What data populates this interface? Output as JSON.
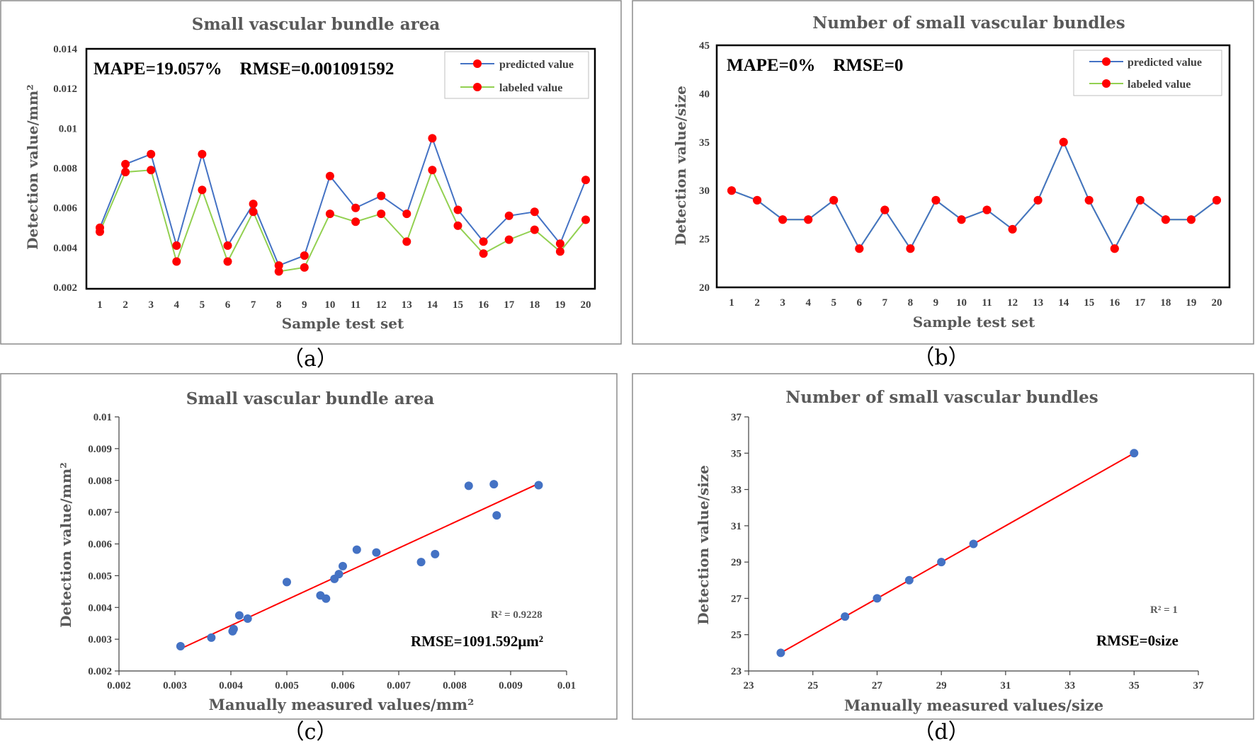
{
  "colors": {
    "predicted": "#4472C4",
    "labeled": "#92D050",
    "marker": "#FF0000",
    "scatter": "#4472C4",
    "fit": "#FF0000"
  },
  "chart_data": [
    {
      "id": "a",
      "type": "line",
      "caption": "（a）",
      "title": "Small vascular bundle area",
      "xlabel": "Sample test set",
      "ylabel": "Detection value/mm²",
      "metrics": "MAPE=19.057%    RMSE=0.001091592",
      "categories": [
        "1",
        "2",
        "3",
        "4",
        "5",
        "6",
        "7",
        "8",
        "9",
        "10",
        "11",
        "12",
        "13",
        "14",
        "15",
        "16",
        "17",
        "18",
        "19",
        "20"
      ],
      "ylim": [
        0.002,
        0.014
      ],
      "yticks": [
        0.002,
        0.004,
        0.006,
        0.008,
        0.01,
        0.012,
        0.014
      ],
      "ytick_labels": [
        "0.002",
        "0.004",
        "0.006",
        "0.008",
        "0.01",
        "0.012",
        "0.014"
      ],
      "legend": "top-right",
      "series": [
        {
          "name": "predicted value",
          "values": [
            0.005,
            0.0082,
            0.0087,
            0.0041,
            0.0087,
            0.0041,
            0.0062,
            0.0031,
            0.0036,
            0.0076,
            0.006,
            0.0066,
            0.0057,
            0.0095,
            0.0059,
            0.0043,
            0.0056,
            0.0058,
            0.0042,
            0.0074
          ]
        },
        {
          "name": "labeled value",
          "values": [
            0.0048,
            0.0078,
            0.0079,
            0.0033,
            0.0069,
            0.0033,
            0.0058,
            0.0028,
            0.003,
            0.0057,
            0.0053,
            0.0057,
            0.0043,
            0.0079,
            0.0051,
            0.0037,
            0.0044,
            0.0049,
            0.0038,
            0.0054
          ]
        }
      ]
    },
    {
      "id": "b",
      "type": "line",
      "caption": "（b）",
      "title": "Number of small vascular bundles",
      "xlabel": "Sample test set",
      "ylabel": "Detection value/size",
      "metrics": "MAPE=0%    RMSE=0",
      "categories": [
        "1",
        "2",
        "3",
        "4",
        "5",
        "6",
        "7",
        "8",
        "9",
        "10",
        "11",
        "12",
        "13",
        "14",
        "15",
        "16",
        "17",
        "18",
        "19",
        "20"
      ],
      "ylim": [
        20,
        45
      ],
      "yticks": [
        20,
        25,
        30,
        35,
        40,
        45
      ],
      "ytick_labels": [
        "20",
        "25",
        "30",
        "35",
        "40",
        "45"
      ],
      "legend": "top-right",
      "series": [
        {
          "name": "predicted value",
          "values": [
            30,
            29,
            27,
            27,
            29,
            24,
            28,
            24,
            29,
            27,
            28,
            26,
            29,
            35,
            29,
            24,
            29,
            27,
            27,
            29
          ]
        },
        {
          "name": "labeled value",
          "values": [
            30,
            29,
            27,
            27,
            29,
            24,
            28,
            24,
            29,
            27,
            28,
            26,
            29,
            35,
            29,
            24,
            29,
            27,
            27,
            29
          ]
        }
      ]
    },
    {
      "id": "c",
      "type": "scatter",
      "caption": "（c）",
      "title": "Small vascular bundle area",
      "xlabel": "Manually measured values/mm²",
      "ylabel": "Detection value/mm²",
      "r2": "R² = 0.9228",
      "metric": "RMSE=1091.592μm²",
      "xlim": [
        0.002,
        0.01
      ],
      "ylim": [
        0.002,
        0.01
      ],
      "xticks": [
        0.002,
        0.003,
        0.004,
        0.005,
        0.006,
        0.007,
        0.008,
        0.009,
        0.01
      ],
      "xtick_labels": [
        "0.002",
        "0.003",
        "0.004",
        "0.005",
        "0.006",
        "0.007",
        "0.008",
        "0.009",
        "0.01"
      ],
      "yticks": [
        0.002,
        0.003,
        0.004,
        0.005,
        0.006,
        0.007,
        0.008,
        0.009,
        0.01
      ],
      "ytick_labels": [
        "0.002",
        "0.003",
        "0.004",
        "0.005",
        "0.006",
        "0.007",
        "0.008",
        "0.009",
        "0.01"
      ],
      "points": [
        [
          0.0031,
          0.00278
        ],
        [
          0.00365,
          0.00305
        ],
        [
          0.00403,
          0.00325
        ],
        [
          0.00405,
          0.00332
        ],
        [
          0.00415,
          0.00375
        ],
        [
          0.0043,
          0.00365
        ],
        [
          0.005,
          0.0048
        ],
        [
          0.0056,
          0.00438
        ],
        [
          0.0057,
          0.00428
        ],
        [
          0.00585,
          0.0049
        ],
        [
          0.00593,
          0.00505
        ],
        [
          0.006,
          0.0053
        ],
        [
          0.00625,
          0.00582
        ],
        [
          0.0066,
          0.00573
        ],
        [
          0.0074,
          0.00543
        ],
        [
          0.00765,
          0.00568
        ],
        [
          0.00825,
          0.00783
        ],
        [
          0.0087,
          0.00788
        ],
        [
          0.00875,
          0.0069
        ],
        [
          0.0095,
          0.00785
        ]
      ],
      "fit": [
        [
          0.0031,
          0.0027
        ],
        [
          0.0095,
          0.0079
        ]
      ]
    },
    {
      "id": "d",
      "type": "scatter",
      "caption": "（d）",
      "title": "Number of small vascular bundles",
      "xlabel": "Manually measured values/size",
      "ylabel": "Detection value/size",
      "r2": "R² = 1",
      "metric": "RMSE=0size",
      "xlim": [
        23,
        37
      ],
      "ylim": [
        23,
        37
      ],
      "xticks": [
        23,
        25,
        27,
        29,
        31,
        33,
        35,
        37
      ],
      "xtick_labels": [
        "23",
        "25",
        "27",
        "29",
        "31",
        "33",
        "35",
        "37"
      ],
      "yticks": [
        23,
        25,
        27,
        29,
        31,
        33,
        35,
        37
      ],
      "ytick_labels": [
        "23",
        "25",
        "27",
        "29",
        "31",
        "33",
        "35",
        "37"
      ],
      "points": [
        [
          24,
          24
        ],
        [
          26,
          26
        ],
        [
          27,
          27
        ],
        [
          28,
          28
        ],
        [
          29,
          29
        ],
        [
          30,
          30
        ],
        [
          35,
          35
        ]
      ],
      "fit": [
        [
          24,
          24
        ],
        [
          35,
          35
        ]
      ]
    }
  ]
}
